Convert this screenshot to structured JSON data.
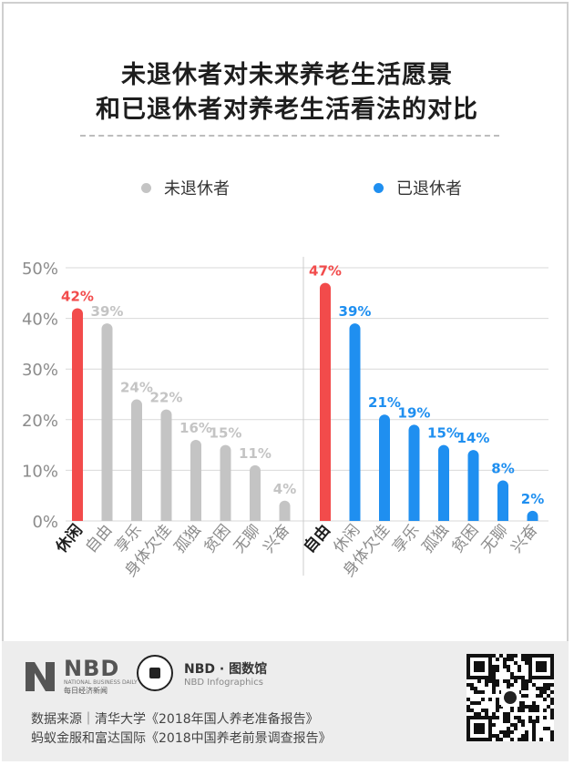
{
  "title_line1": "未退休者对未来养老生活愿景",
  "title_line2": "和已退休者对养老生活看法的对比",
  "colors": {
    "highlight": "#f24b4b",
    "unretired": "#c4c4c4",
    "retired": "#1f8ff0",
    "axis_text": "#8c8c8c",
    "grid": "#d9d9d9"
  },
  "chart_data": {
    "type": "bar",
    "ylim": [
      0,
      50
    ],
    "yticks": [
      "0%",
      "10%",
      "20%",
      "30%",
      "40%",
      "50%"
    ],
    "legend": [
      {
        "name": "未退休者"
      },
      {
        "name": "已退休者"
      }
    ],
    "groups": [
      {
        "name": "未退休者",
        "categories": [
          "休闲",
          "自由",
          "享乐",
          "身体欠佳",
          "孤独",
          "贫困",
          "无聊",
          "兴奋"
        ],
        "values": [
          42,
          39,
          24,
          22,
          16,
          15,
          11,
          4
        ],
        "labels": [
          "42%",
          "39%",
          "24%",
          "22%",
          "16%",
          "15%",
          "11%",
          "4%"
        ],
        "highlight_index": 0
      },
      {
        "name": "已退休者",
        "categories": [
          "自由",
          "休闲",
          "身体欠佳",
          "享乐",
          "孤独",
          "贫困",
          "无聊",
          "兴奋"
        ],
        "values": [
          47,
          39,
          21,
          19,
          15,
          14,
          8,
          2
        ],
        "labels": [
          "47%",
          "39%",
          "21%",
          "19%",
          "15%",
          "14%",
          "8%",
          "2%"
        ],
        "highlight_index": 0
      }
    ]
  },
  "footer": {
    "nbd_big": "NBD",
    "nbd_small": "NATIONAL BUSINESS DAILY",
    "nbd_cn": "每日经济新闻",
    "info_line1": "NBD · 图数馆",
    "info_line2": "NBD Infographics",
    "source_line1": "数据来源｜清华大学《2018年国人养老准备报告》",
    "source_line2": "蚂蚁金服和富达国际《2018中国养老前景调查报告》"
  }
}
